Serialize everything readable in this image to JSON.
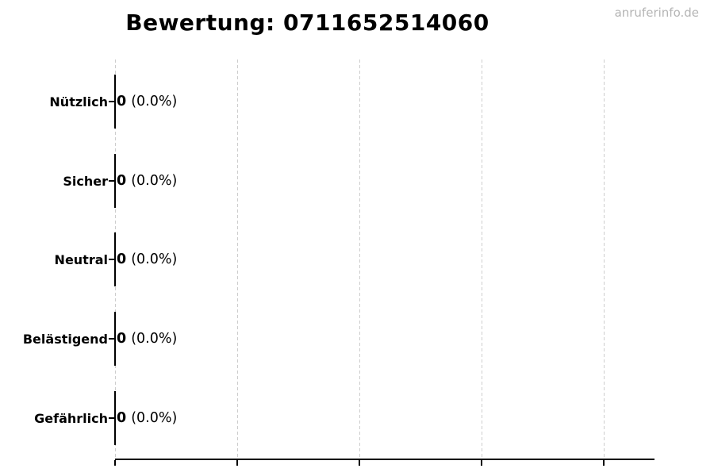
{
  "header": {
    "watermark": "anruferinfo.de"
  },
  "chart_data": {
    "type": "bar",
    "orientation": "horizontal",
    "title": "Bewertung: 0711652514060",
    "categories": [
      "Nützlich",
      "Sicher",
      "Neutral",
      "Belästigend",
      "Gefährlich"
    ],
    "values": [
      0,
      0,
      0,
      0,
      0
    ],
    "value_labels": [
      "0 (0.0%)",
      "0 (0.0%)",
      "0 (0.0%)",
      "0 (0.0%)",
      "0 (0.0%)"
    ],
    "percent_display": [
      "(0.0%)",
      "(0.0%)",
      "(0.0%)",
      "(0.0%)",
      "(0.0%)"
    ],
    "xlabel": "",
    "ylabel": "",
    "x_tick_labels": [],
    "x_gridline_count": 5,
    "grid": true,
    "legend_position": "none",
    "colors": {
      "text": "#000000",
      "bar_edge": "#000000",
      "grid": "#cdcdcd",
      "axis": "#000000",
      "watermark": "#b4b4b4",
      "background": "#ffffff"
    }
  }
}
